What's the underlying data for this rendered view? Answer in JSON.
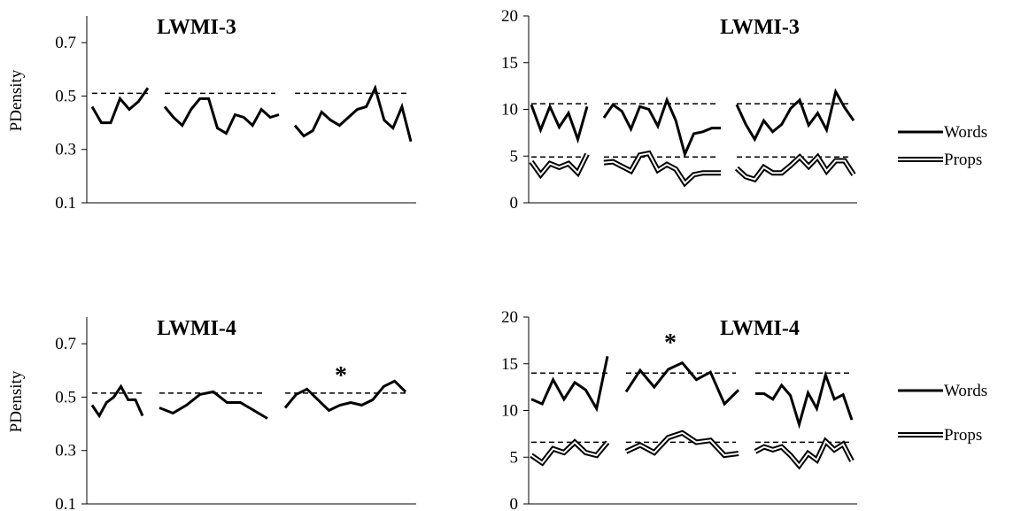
{
  "chart_data": [
    {
      "type": "line",
      "title": "LWMI-3",
      "ylabel": "PDensity",
      "xlabel": "",
      "ylim": [
        0.1,
        0.8
      ],
      "yticks": [
        0.1,
        0.3,
        0.5,
        0.7
      ],
      "ytick_labels": [
        "0.1",
        "0.3",
        "0.5",
        "0.7"
      ],
      "grid": false,
      "annotations": [],
      "series": [
        {
          "segments": [
            [
              0.46,
              0.4,
              0.4,
              0.49,
              0.45,
              0.48,
              0.53
            ],
            [
              0.46,
              0.42,
              0.39,
              0.45,
              0.49,
              0.49,
              0.38,
              0.36,
              0.43,
              0.42,
              0.39,
              0.45,
              0.42,
              0.43
            ],
            [
              0.39,
              0.35,
              0.37,
              0.44,
              0.41,
              0.39,
              0.42,
              0.45,
              0.46,
              0.53,
              0.41,
              0.38,
              0.46,
              0.33
            ]
          ],
          "reference": [
            0.51,
            0.51,
            0.51
          ]
        }
      ]
    },
    {
      "type": "line",
      "title": "LWMI-3",
      "xlabel": "",
      "ylabel": "",
      "ylim": [
        0,
        20
      ],
      "yticks": [
        0,
        5,
        10,
        15,
        20
      ],
      "ytick_labels": [
        "0",
        "5",
        "10",
        "15",
        "20"
      ],
      "legend": "right",
      "grid": false,
      "annotations": [],
      "series": [
        {
          "name": "Words",
          "style": "solid",
          "segments": [
            [
              10.5,
              7.8,
              10.3,
              8.1,
              9.6,
              6.8,
              10.3
            ],
            [
              9.1,
              10.5,
              9.8,
              7.9,
              10.3,
              10.0,
              8.2,
              11.0,
              8.8,
              5.2,
              7.4,
              7.6,
              8.0,
              8.0
            ],
            [
              10.5,
              8.4,
              6.8,
              8.8,
              7.6,
              8.4,
              10.1,
              11.0,
              8.3,
              9.6,
              7.8,
              11.9,
              10.2,
              8.8
            ]
          ],
          "reference": [
            10.6,
            10.6,
            10.6
          ]
        },
        {
          "name": "Props",
          "style": "double",
          "segments": [
            [
              4.4,
              3.0,
              4.2,
              3.8,
              4.2,
              3.2,
              5.2
            ],
            [
              4.3,
              4.4,
              3.9,
              3.4,
              5.1,
              5.3,
              3.5,
              4.1,
              3.6,
              2.1,
              3.0,
              3.2,
              3.2,
              3.2
            ],
            [
              3.7,
              2.8,
              2.5,
              3.8,
              3.2,
              3.2,
              4.0,
              4.9,
              3.9,
              4.9,
              3.4,
              4.5,
              4.5,
              3.0
            ]
          ],
          "reference": [
            4.9,
            4.9,
            4.9
          ]
        }
      ]
    },
    {
      "type": "line",
      "title": "LWMI-4",
      "ylabel": "PDensity",
      "xlabel": "",
      "ylim": [
        0.1,
        0.8
      ],
      "yticks": [
        0.1,
        0.3,
        0.5,
        0.7
      ],
      "ytick_labels": [
        "0.1",
        "0.3",
        "0.5",
        "0.7"
      ],
      "grid": false,
      "annotations": [
        "*"
      ],
      "series": [
        {
          "segments": [
            [
              0.47,
              0.43,
              0.48,
              0.5,
              0.54,
              0.49,
              0.49,
              0.43
            ],
            [
              0.46,
              0.44,
              0.47,
              0.51,
              0.52,
              0.48,
              0.48,
              0.45,
              0.42
            ],
            [
              0.46,
              0.51,
              0.53,
              0.49,
              0.45,
              0.47,
              0.48,
              0.47,
              0.49,
              0.54,
              0.56,
              0.52
            ]
          ],
          "reference": [
            0.515,
            0.515,
            0.515
          ]
        }
      ]
    },
    {
      "type": "line",
      "title": "LWMI-4",
      "xlabel": "",
      "ylabel": "",
      "ylim": [
        0,
        20
      ],
      "yticks": [
        0,
        5,
        10,
        15,
        20
      ],
      "ytick_labels": [
        "0",
        "5",
        "10",
        "15",
        "20"
      ],
      "legend": "right",
      "grid": false,
      "annotations": [
        "*"
      ],
      "series": [
        {
          "name": "Words",
          "style": "solid",
          "segments": [
            [
              11.2,
              10.7,
              13.3,
              11.2,
              13.0,
              12.2,
              10.2,
              15.8
            ],
            [
              12.0,
              14.3,
              12.5,
              14.4,
              15.1,
              13.3,
              14.1,
              10.7,
              12.2
            ],
            [
              11.8,
              11.8,
              11.2,
              12.7,
              11.6,
              8.5,
              11.9,
              10.2,
              13.8,
              11.2,
              11.7,
              9.0
            ]
          ],
          "reference": [
            14.0,
            14.0,
            14.0
          ]
        },
        {
          "name": "Props",
          "style": "double",
          "segments": [
            [
              5.2,
              4.4,
              5.9,
              5.5,
              6.6,
              5.5,
              5.2,
              6.6
            ],
            [
              5.6,
              6.3,
              5.5,
              7.1,
              7.6,
              6.6,
              6.8,
              5.2,
              5.4
            ],
            [
              5.6,
              6.1,
              5.8,
              6.1,
              5.2,
              4.1,
              5.4,
              4.7,
              6.7,
              5.8,
              6.4,
              4.6
            ]
          ],
          "reference": [
            6.6,
            6.6,
            6.6
          ]
        }
      ]
    }
  ]
}
